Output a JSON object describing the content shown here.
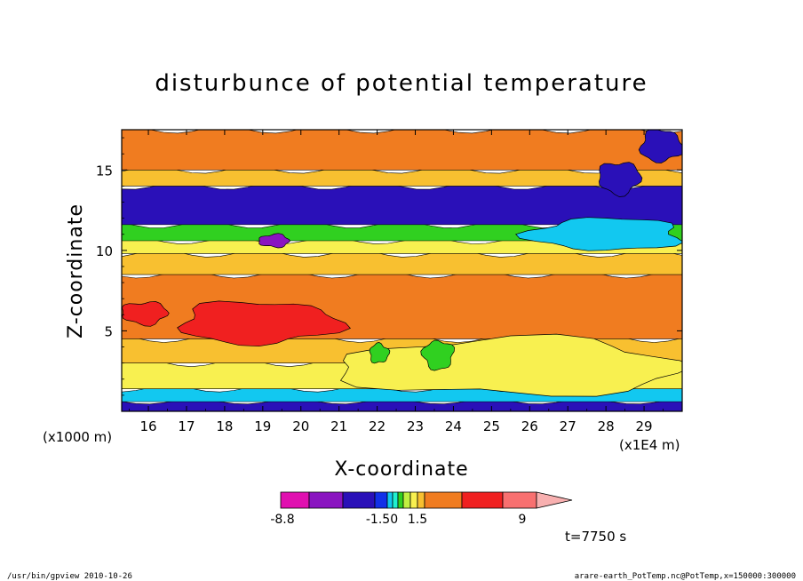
{
  "chart_data": {
    "type": "heatmap",
    "title": "disturbunce of potential temperature",
    "xlabel": "X-coordinate",
    "ylabel": "Z-coordinate",
    "x_unit_left": "(x1000 m)",
    "x_unit_right": "(x1E4 m)",
    "xlim": [
      15.3,
      30
    ],
    "ylim": [
      0,
      17.5
    ],
    "x_ticks": [
      "16",
      "17",
      "18",
      "19",
      "20",
      "21",
      "22",
      "23",
      "24",
      "25",
      "26",
      "27",
      "28",
      "29"
    ],
    "x_tick_values": [
      16,
      17,
      18,
      19,
      20,
      21,
      22,
      23,
      24,
      25,
      26,
      27,
      28,
      29
    ],
    "y_ticks": [
      "5",
      "10",
      "15"
    ],
    "y_tick_values": [
      5,
      10,
      15
    ],
    "time_label": "t=7750 s",
    "colorbar": {
      "colors": [
        "#e010b0",
        "#8a14c0",
        "#2a10b8",
        "#1230e8",
        "#12c8f0",
        "#20f0d0",
        "#30d020",
        "#c0f040",
        "#f8f050",
        "#f8c030",
        "#f07c20",
        "#f02020",
        "#f87070",
        "#f8b0b0"
      ],
      "labels": [
        "-8.8",
        "-1.50",
        "1.5",
        "9"
      ]
    },
    "bands_bottom_to_top": [
      {
        "z0": 0.0,
        "z1": 0.6,
        "color": "#2a10b8"
      },
      {
        "z0": 0.6,
        "z1": 1.4,
        "color": "#12c8f0"
      },
      {
        "z0": 1.4,
        "z1": 3.0,
        "color": "#f8f050"
      },
      {
        "z0": 3.0,
        "z1": 4.5,
        "color": "#f8c030"
      },
      {
        "z0": 4.5,
        "z1": 8.5,
        "color": "#f07c20"
      },
      {
        "z0": 8.5,
        "z1": 9.8,
        "color": "#f8c030"
      },
      {
        "z0": 9.8,
        "z1": 10.6,
        "color": "#f8f050"
      },
      {
        "z0": 10.6,
        "z1": 11.6,
        "color": "#30d020"
      },
      {
        "z0": 11.6,
        "z1": 14.0,
        "color": "#2a10b8"
      },
      {
        "z0": 14.0,
        "z1": 15.0,
        "color": "#f8c030"
      },
      {
        "z0": 15.0,
        "z1": 17.5,
        "color": "#f07c20"
      }
    ],
    "features": [
      {
        "kind": "red-core",
        "x": [
          16.8,
          21.0
        ],
        "z": [
          4.2,
          6.8
        ],
        "color": "#f02020"
      },
      {
        "kind": "red-core",
        "x": [
          15.3,
          16.5
        ],
        "z": [
          5.4,
          6.8
        ],
        "color": "#f02020"
      },
      {
        "kind": "yellow-wave",
        "x": [
          21.0,
          30.0
        ],
        "z": [
          1.0,
          4.5
        ],
        "color": "#f8f050"
      },
      {
        "kind": "green-blob",
        "x": [
          21.8,
          22.3
        ],
        "z": [
          3.0,
          4.2
        ],
        "color": "#30d020"
      },
      {
        "kind": "green-blob",
        "x": [
          23.2,
          24.0
        ],
        "z": [
          2.6,
          4.4
        ],
        "color": "#30d020"
      },
      {
        "kind": "cyan-patch",
        "x": [
          26.0,
          30.0
        ],
        "z": [
          10.0,
          12.0
        ],
        "color": "#12c8f0"
      },
      {
        "kind": "blue-blob",
        "x": [
          28.9,
          30.0
        ],
        "z": [
          15.5,
          17.5
        ],
        "color": "#2a10b8"
      },
      {
        "kind": "blue-blob",
        "x": [
          27.8,
          28.9
        ],
        "z": [
          13.5,
          15.5
        ],
        "color": "#2a10b8"
      },
      {
        "kind": "violet-spot",
        "x": [
          18.9,
          19.7
        ],
        "z": [
          10.2,
          11.0
        ],
        "color": "#8a14c0"
      }
    ]
  },
  "footer": {
    "left": "/usr/bin/gpview   2010-10-26",
    "right": "arare-earth_PotTemp.nc@PotTemp,x=150000:300000"
  }
}
